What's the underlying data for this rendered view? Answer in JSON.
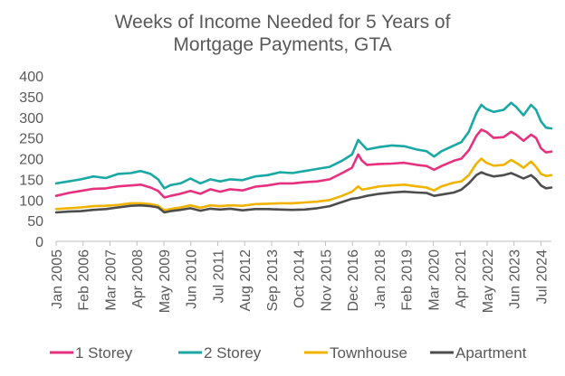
{
  "chart_data": {
    "type": "line",
    "title_lines": [
      "Weeks of Income Needed for 5 Years of",
      "Mortgage Payments, GTA"
    ],
    "xlabel": "",
    "ylabel": "",
    "ylim": [
      0,
      400
    ],
    "yticks": [
      0,
      50,
      100,
      150,
      200,
      250,
      300,
      350,
      400
    ],
    "xlim": [
      2005.0,
      2024.92
    ],
    "xtick_labels": [
      "Jan 2005",
      "Feb 2006",
      "Mar 2007",
      "Apr 2008",
      "May 2009",
      "Jun 2010",
      "Jul 2011",
      "Aug 2012",
      "Sep 2013",
      "Oct 2014",
      "Nov 2015",
      "Dec 2016",
      "Jan 2018",
      "Feb 2019",
      "Mar 2020",
      "Apr 2021",
      "May 2022",
      "Jun 2023",
      "Jul 2024"
    ],
    "xtick_values": [
      2005.0,
      2006.083,
      2007.167,
      2008.25,
      2009.333,
      2010.417,
      2011.5,
      2012.583,
      2013.667,
      2014.75,
      2015.833,
      2016.917,
      2018.0,
      2019.083,
      2020.167,
      2021.25,
      2022.333,
      2023.417,
      2024.5
    ],
    "grid": false,
    "legend_position": "bottom",
    "series": [
      {
        "name": "1 Storey",
        "color": "#e6317f",
        "x": [
          2005.0,
          2005.5,
          2006.0,
          2006.5,
          2007.0,
          2007.5,
          2008.0,
          2008.4,
          2008.8,
          2009.1,
          2009.35,
          2009.6,
          2010.0,
          2010.4,
          2010.8,
          2011.2,
          2011.6,
          2012.0,
          2012.5,
          2013.0,
          2013.5,
          2014.0,
          2014.5,
          2015.0,
          2015.5,
          2016.0,
          2016.5,
          2016.9,
          2017.15,
          2017.3,
          2017.5,
          2018.0,
          2018.5,
          2019.0,
          2019.5,
          2019.9,
          2020.2,
          2020.5,
          2021.0,
          2021.3,
          2021.6,
          2021.9,
          2022.1,
          2022.3,
          2022.6,
          2023.0,
          2023.3,
          2023.5,
          2023.8,
          2024.1,
          2024.3,
          2024.5,
          2024.7,
          2024.92
        ],
        "y": [
          110,
          117,
          122,
          127,
          128,
          133,
          135,
          137,
          130,
          122,
          106,
          110,
          115,
          122,
          115,
          126,
          120,
          126,
          123,
          132,
          135,
          140,
          140,
          143,
          145,
          150,
          165,
          178,
          210,
          195,
          185,
          187,
          188,
          190,
          185,
          182,
          173,
          182,
          195,
          200,
          220,
          255,
          270,
          265,
          250,
          252,
          265,
          258,
          243,
          258,
          250,
          225,
          215,
          217
        ]
      },
      {
        "name": "2 Storey",
        "color": "#1aa8a4",
        "x": [
          2005.0,
          2005.5,
          2006.0,
          2006.5,
          2007.0,
          2007.5,
          2008.0,
          2008.4,
          2008.8,
          2009.1,
          2009.35,
          2009.6,
          2010.0,
          2010.4,
          2010.8,
          2011.2,
          2011.6,
          2012.0,
          2012.5,
          2013.0,
          2013.5,
          2014.0,
          2014.5,
          2015.0,
          2015.5,
          2016.0,
          2016.5,
          2016.9,
          2017.15,
          2017.3,
          2017.5,
          2018.0,
          2018.5,
          2019.0,
          2019.5,
          2019.9,
          2020.2,
          2020.5,
          2021.0,
          2021.3,
          2021.6,
          2021.9,
          2022.1,
          2022.3,
          2022.6,
          2023.0,
          2023.3,
          2023.5,
          2023.8,
          2024.1,
          2024.3,
          2024.5,
          2024.7,
          2024.92
        ],
        "y": [
          140,
          145,
          150,
          157,
          153,
          163,
          165,
          170,
          163,
          150,
          128,
          136,
          140,
          152,
          140,
          150,
          145,
          150,
          148,
          157,
          160,
          167,
          165,
          170,
          175,
          180,
          195,
          210,
          245,
          235,
          222,
          228,
          232,
          230,
          222,
          218,
          205,
          218,
          232,
          240,
          265,
          310,
          330,
          320,
          313,
          318,
          335,
          325,
          305,
          330,
          318,
          290,
          275,
          273
        ]
      },
      {
        "name": "Townhouse",
        "color": "#f0b400",
        "x": [
          2005.0,
          2005.5,
          2006.0,
          2006.5,
          2007.0,
          2007.5,
          2008.0,
          2008.4,
          2008.8,
          2009.1,
          2009.35,
          2009.6,
          2010.0,
          2010.4,
          2010.8,
          2011.2,
          2011.6,
          2012.0,
          2012.5,
          2013.0,
          2013.5,
          2014.0,
          2014.5,
          2015.0,
          2015.5,
          2016.0,
          2016.5,
          2016.9,
          2017.15,
          2017.3,
          2017.5,
          2018.0,
          2018.5,
          2019.0,
          2019.5,
          2019.9,
          2020.2,
          2020.5,
          2021.0,
          2021.3,
          2021.6,
          2021.9,
          2022.1,
          2022.3,
          2022.6,
          2023.0,
          2023.3,
          2023.5,
          2023.8,
          2024.1,
          2024.3,
          2024.5,
          2024.7,
          2024.92
        ],
        "y": [
          78,
          80,
          82,
          85,
          86,
          88,
          92,
          92,
          90,
          86,
          75,
          78,
          82,
          87,
          81,
          87,
          85,
          87,
          86,
          90,
          91,
          92,
          92,
          94,
          96,
          100,
          110,
          120,
          133,
          125,
          127,
          133,
          135,
          137,
          133,
          130,
          123,
          133,
          142,
          145,
          160,
          188,
          200,
          190,
          183,
          185,
          197,
          190,
          178,
          193,
          180,
          163,
          158,
          160
        ]
      },
      {
        "name": "Apartment",
        "color": "#4d4d4d",
        "x": [
          2005.0,
          2005.5,
          2006.0,
          2006.5,
          2007.0,
          2007.5,
          2008.0,
          2008.4,
          2008.8,
          2009.1,
          2009.35,
          2009.6,
          2010.0,
          2010.4,
          2010.8,
          2011.2,
          2011.6,
          2012.0,
          2012.5,
          2013.0,
          2013.5,
          2014.0,
          2014.5,
          2015.0,
          2015.5,
          2016.0,
          2016.5,
          2016.9,
          2017.15,
          2017.3,
          2017.5,
          2018.0,
          2018.5,
          2019.0,
          2019.5,
          2019.9,
          2020.2,
          2020.5,
          2021.0,
          2021.3,
          2021.6,
          2021.9,
          2022.1,
          2022.3,
          2022.6,
          2023.0,
          2023.3,
          2023.5,
          2023.8,
          2024.1,
          2024.3,
          2024.5,
          2024.7,
          2024.92
        ],
        "y": [
          70,
          72,
          73,
          76,
          78,
          82,
          86,
          87,
          85,
          82,
          70,
          73,
          76,
          80,
          74,
          79,
          77,
          79,
          75,
          78,
          78,
          77,
          76,
          77,
          80,
          85,
          95,
          103,
          105,
          107,
          110,
          115,
          118,
          120,
          118,
          117,
          110,
          113,
          118,
          125,
          140,
          160,
          167,
          162,
          157,
          160,
          165,
          160,
          152,
          160,
          150,
          135,
          128,
          130
        ]
      }
    ]
  }
}
